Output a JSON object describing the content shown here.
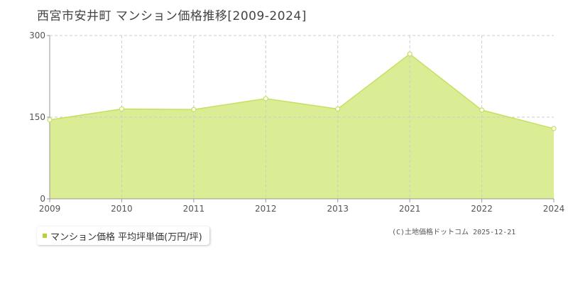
{
  "title": "西宮市安井町 マンション価格推移[2009-2024]",
  "legend": {
    "label": "マンション価格 平均坪単価(万円/坪)",
    "swatch_color": "#b5d334"
  },
  "copyright": "(C)土地価格ドットコム 2025-12-21",
  "colors": {
    "fill": "#dbed94",
    "line": "#c5e060",
    "grid": "#cccccc",
    "axis": "#999999"
  },
  "chart_data": {
    "type": "area",
    "categories": [
      "2009",
      "2010",
      "2011",
      "2012",
      "2013",
      "2021",
      "2022",
      "2024"
    ],
    "series": [
      {
        "values": [
          145,
          165,
          164,
          184,
          165,
          266,
          163,
          129
        ]
      }
    ],
    "ylim": [
      0,
      300
    ],
    "yticks": [
      0,
      150,
      300
    ],
    "xlabel": "",
    "ylabel": "",
    "grid": true,
    "legend_position": "bottom-left"
  }
}
